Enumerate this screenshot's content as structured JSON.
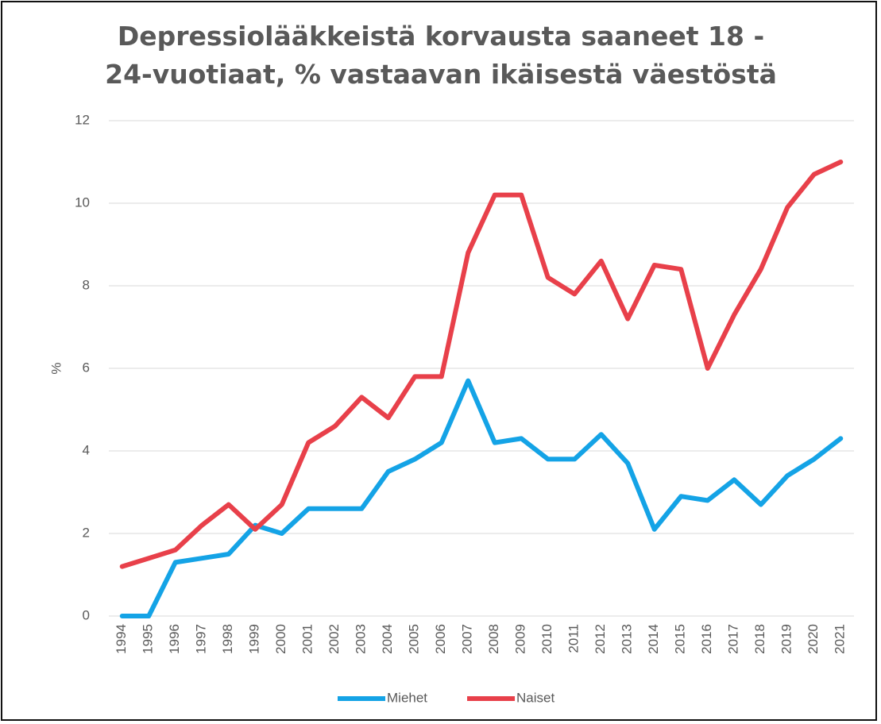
{
  "chart_data": {
    "type": "line",
    "title": "Depressiolääkkeistä korvausta saaneet 18 - 24-vuotiaat, % vastaavan ikäisestä väestöstä",
    "y_label": "%",
    "categories": [
      "1994",
      "1995",
      "1996",
      "1997",
      "1998",
      "1999",
      "2000",
      "2001",
      "2002",
      "2003",
      "2004",
      "2005",
      "2006",
      "2007",
      "2008",
      "2009",
      "2010",
      "2011",
      "2012",
      "2013",
      "2014",
      "2015",
      "2016",
      "2017",
      "2018",
      "2019",
      "2020",
      "2021"
    ],
    "series": [
      {
        "name": "Miehet",
        "color": "#14a3e6",
        "values": [
          0,
          0,
          1.3,
          1.4,
          1.5,
          2.2,
          2.0,
          2.6,
          2.6,
          2.6,
          3.5,
          3.8,
          4.2,
          5.7,
          4.2,
          4.3,
          3.8,
          3.8,
          4.4,
          3.7,
          2.1,
          2.9,
          2.8,
          3.3,
          2.7,
          3.4,
          3.8,
          4.3
        ]
      },
      {
        "name": "Naiset",
        "color": "#e8404a",
        "values": [
          1.2,
          1.4,
          1.6,
          2.2,
          2.7,
          2.1,
          2.7,
          4.2,
          4.6,
          5.3,
          4.8,
          5.8,
          5.8,
          8.8,
          10.2,
          10.2,
          8.2,
          7.8,
          8.6,
          7.2,
          8.5,
          8.4,
          6.0,
          7.3,
          8.4,
          9.9,
          10.7,
          11.0
        ]
      }
    ],
    "ylim": [
      0,
      12
    ],
    "yticks": [
      0,
      2,
      4,
      6,
      8,
      10,
      12
    ],
    "grid": true,
    "legend": "bottom"
  }
}
